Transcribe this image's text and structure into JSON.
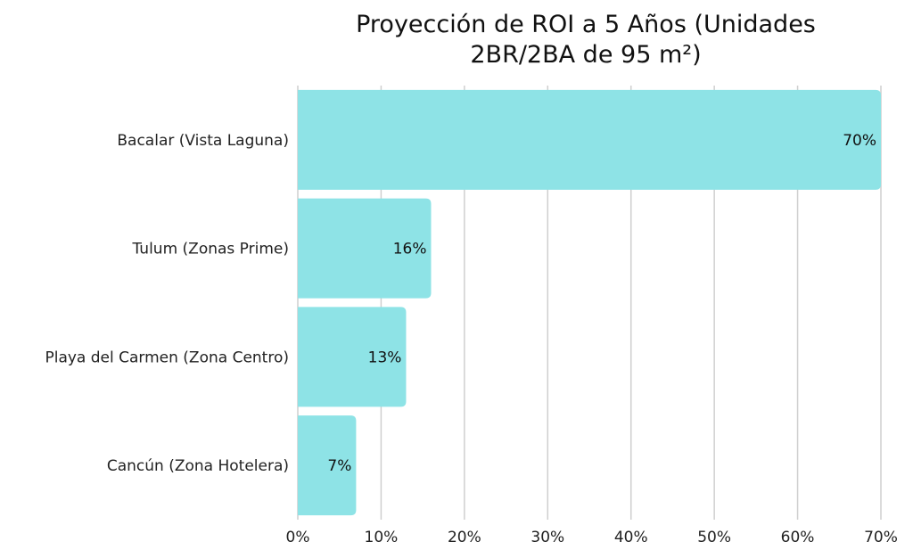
{
  "chart_data": {
    "type": "bar",
    "orientation": "horizontal",
    "title_lines": [
      "Proyección de ROI a 5 Años (Unidades",
      "2BR/2BA de 95 m²)"
    ],
    "categories": [
      "Bacalar (Vista Laguna)",
      "Tulum (Zonas Prime)",
      "Playa del Carmen (Zona Centro)",
      "Cancún (Zona Hotelera)"
    ],
    "values": [
      70,
      16,
      13,
      7
    ],
    "value_labels": [
      "70%",
      "16%",
      "13%",
      "7%"
    ],
    "x_ticks": [
      0,
      10,
      20,
      30,
      40,
      50,
      60,
      70
    ],
    "x_tick_labels": [
      "0%",
      "10%",
      "20%",
      "30%",
      "40%",
      "50%",
      "60%",
      "70%"
    ],
    "xlim": [
      0,
      70
    ],
    "grid": true,
    "bar_color": "#8ee3e6",
    "xlabel": "",
    "ylabel": ""
  }
}
